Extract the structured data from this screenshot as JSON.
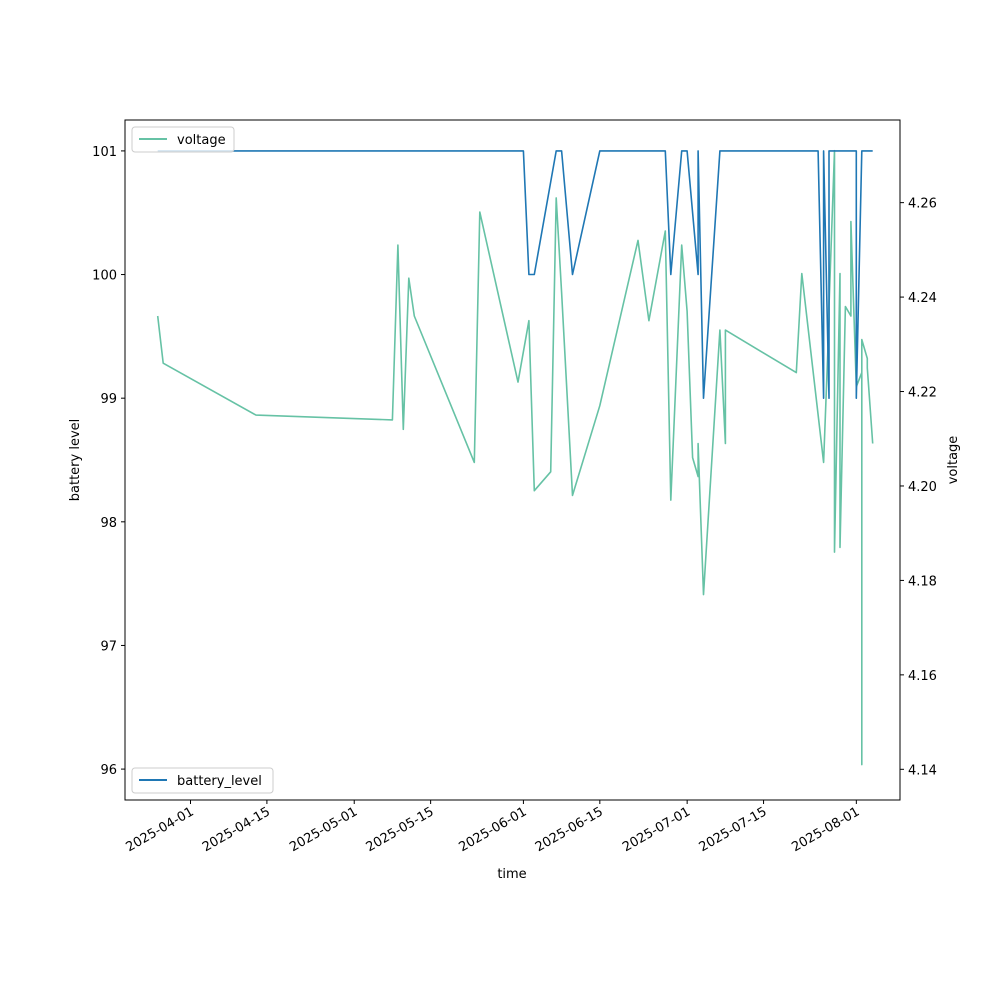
{
  "chart_data": {
    "type": "line",
    "xlabel": "time",
    "ylabel_left": "battery level",
    "ylabel_right": "voltage",
    "x_ticks": [
      "2025-04-01",
      "2025-04-15",
      "2025-05-01",
      "2025-05-15",
      "2025-06-01",
      "2025-06-15",
      "2025-07-01",
      "2025-07-15",
      "2025-08-01"
    ],
    "ylim_left": [
      95.75,
      101.25
    ],
    "ylim_right": [
      4.1335,
      4.2775
    ],
    "y_ticks_left": [
      96,
      97,
      98,
      99,
      100,
      101
    ],
    "y_ticks_right": [
      4.14,
      4.16,
      4.18,
      4.2,
      4.22,
      4.24,
      4.26
    ],
    "xlim": [
      "2025-03-20",
      "2025-08-09"
    ],
    "grid": false,
    "legend": [
      {
        "label": "voltage",
        "placement": "upper-left",
        "series": "voltage"
      },
      {
        "label": "battery_level",
        "placement": "lower-left",
        "series": "battery_level"
      }
    ],
    "series": [
      {
        "name": "battery_level",
        "axis": "left",
        "color": "#1f77b4",
        "x": [
          "2025-03-26",
          "2025-06-01",
          "2025-06-02",
          "2025-06-03",
          "2025-06-07",
          "2025-06-08",
          "2025-06-10",
          "2025-06-15",
          "2025-06-27",
          "2025-06-28",
          "2025-06-30",
          "2025-07-01",
          "2025-07-03",
          "2025-07-03",
          "2025-07-04",
          "2025-07-04",
          "2025-07-07",
          "2025-07-08",
          "2025-07-25",
          "2025-07-26",
          "2025-07-26",
          "2025-07-26",
          "2025-07-27",
          "2025-07-27",
          "2025-07-28",
          "2025-07-29",
          "2025-07-30",
          "2025-08-01",
          "2025-08-01",
          "2025-08-02",
          "2025-08-04"
        ],
        "values": [
          101,
          101,
          100,
          100,
          101,
          101,
          100,
          101,
          101,
          100,
          101,
          101,
          100,
          101,
          99,
          99,
          101,
          101,
          101,
          99,
          101,
          101,
          99,
          101,
          101,
          101,
          101,
          101,
          99,
          101,
          101
        ]
      },
      {
        "name": "voltage",
        "axis": "right",
        "color": "#66c2a5",
        "x": [
          "2025-03-26",
          "2025-03-27",
          "2025-04-13",
          "2025-05-08",
          "2025-05-09",
          "2025-05-10",
          "2025-05-11",
          "2025-05-12",
          "2025-05-23",
          "2025-05-24",
          "2025-05-31",
          "2025-06-02",
          "2025-06-03",
          "2025-06-06",
          "2025-06-07",
          "2025-06-08",
          "2025-06-10",
          "2025-06-15",
          "2025-06-22",
          "2025-06-24",
          "2025-06-27",
          "2025-06-28",
          "2025-06-30",
          "2025-07-01",
          "2025-07-02",
          "2025-07-03",
          "2025-07-03",
          "2025-07-04",
          "2025-07-07",
          "2025-07-08",
          "2025-07-08",
          "2025-07-21",
          "2025-07-22",
          "2025-07-26",
          "2025-07-27",
          "2025-07-27",
          "2025-07-28",
          "2025-07-28",
          "2025-07-29",
          "2025-07-29",
          "2025-07-30",
          "2025-07-31",
          "2025-07-31",
          "2025-08-01",
          "2025-08-02",
          "2025-08-02",
          "2025-08-02",
          "2025-08-03",
          "2025-08-03",
          "2025-08-04"
        ],
        "values": [
          4.236,
          4.226,
          4.215,
          4.214,
          4.251,
          4.212,
          4.244,
          4.236,
          4.205,
          4.258,
          4.222,
          4.235,
          4.199,
          4.203,
          4.261,
          4.241,
          4.198,
          4.217,
          4.252,
          4.235,
          4.254,
          4.197,
          4.251,
          4.237,
          4.206,
          4.202,
          4.209,
          4.177,
          4.233,
          4.209,
          4.233,
          4.224,
          4.245,
          4.205,
          4.235,
          4.238,
          4.271,
          4.186,
          4.245,
          4.187,
          4.238,
          4.236,
          4.256,
          4.221,
          4.224,
          4.141,
          4.231,
          4.227,
          4.225,
          4.209
        ]
      }
    ]
  }
}
